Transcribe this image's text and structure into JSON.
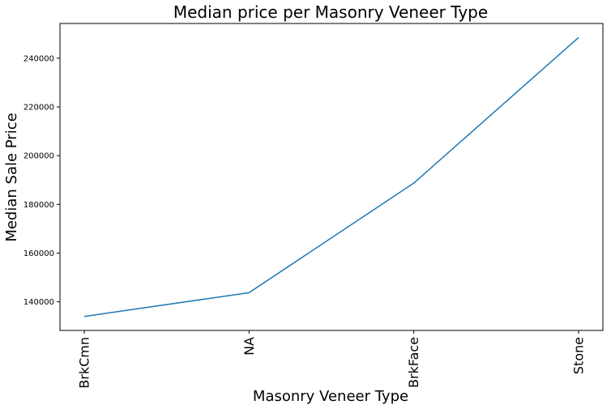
{
  "chart_data": {
    "type": "line",
    "title": "Median price per Masonry Veneer Type",
    "xlabel": "Masonry Veneer Type",
    "ylabel": "Median Sale Price",
    "categories": [
      "BrkCmn",
      "NA",
      "BrkFace",
      "Stone"
    ],
    "values": [
      134000,
      143750,
      188750,
      248500
    ],
    "ylim": [
      128250,
      254250
    ],
    "yticks": [
      140000,
      160000,
      180000,
      200000,
      220000,
      240000
    ],
    "grid": false,
    "line_color": "#1f77b4"
  }
}
